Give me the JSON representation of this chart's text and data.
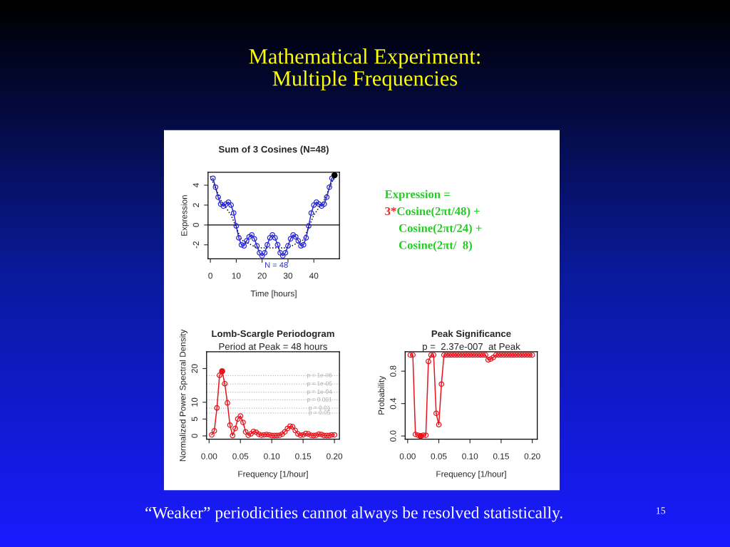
{
  "chart_data": [
    {
      "type": "other",
      "title": "Mathematical Experiment:\nMultiple Frequencies",
      "annotations": [
        "“Weaker” periodicities cannot always be resolved statistically.",
        "15"
      ]
    },
    {
      "type": "line",
      "title": "Sum of 3 Cosines (N=48)",
      "xlabel": "Time [hours]",
      "ylabel": "Expression",
      "xlim": [
        -0.9,
        49.9
      ],
      "ylim": [
        -3.4,
        5.3
      ],
      "xticks": [
        0,
        10,
        20,
        30,
        40
      ],
      "yticks": [
        -2,
        0,
        2,
        4
      ],
      "marker": "circle",
      "ref_lines": [
        {
          "axis": "y",
          "value": 0,
          "color": "#000000"
        }
      ],
      "annotations": [
        "N = 48"
      ],
      "series": [
        {
          "color": "#2b2bd9",
          "x": [
            1,
            2,
            3,
            4,
            5,
            6,
            7,
            8,
            9,
            10,
            11,
            12,
            13,
            14,
            15,
            16,
            17,
            18,
            19,
            20,
            21,
            22,
            23,
            24,
            25,
            26,
            27,
            28,
            29,
            30,
            31,
            32,
            33,
            34,
            35,
            36,
            37,
            38,
            39,
            40,
            41,
            42,
            43,
            44,
            45,
            46,
            47,
            48
          ],
          "values": [
            4.7,
            3.8,
            2.8,
            2.1,
            1.9,
            2.1,
            2.3,
            2.0,
            1.2,
            -0.1,
            -1.3,
            -2.0,
            -2.1,
            -1.6,
            -1.2,
            -1.0,
            -1.4,
            -2.1,
            -2.8,
            -3.1,
            -2.8,
            -2.0,
            -1.3,
            -1.0,
            -1.3,
            -2.0,
            -2.8,
            -3.1,
            -2.8,
            -2.1,
            -1.4,
            -1.0,
            -1.2,
            -1.6,
            -2.1,
            -2.0,
            -1.3,
            -0.1,
            1.2,
            2.0,
            2.3,
            2.1,
            1.9,
            2.1,
            2.8,
            3.8,
            4.7,
            5.0
          ]
        },
        {
          "type": "line",
          "color": "#000000",
          "line_style": "dotted",
          "marker": "none",
          "x": [
            0,
            4,
            8,
            12,
            18,
            24,
            30,
            36,
            40,
            44,
            48
          ],
          "values": [
            4.9,
            2.5,
            1.0,
            -1.5,
            -2.3,
            -2.3,
            -2.3,
            -1.5,
            1.0,
            2.5,
            4.9
          ]
        },
        {
          "type": "scatter",
          "color": "#000000",
          "x": [
            48
          ],
          "values": [
            5.0
          ]
        }
      ]
    },
    {
      "type": "other",
      "annotations": [
        "Expression =",
        "3*",
        "Cosine(2πt/48) +",
        "Cosine(2πt/24) +",
        "Cosine(2πt/  8)"
      ],
      "colors": [
        "#22cc22",
        "#ff2020",
        "#22cc22",
        "#22cc22",
        "#22cc22"
      ]
    },
    {
      "type": "line",
      "title": "Lomb-Scargle Periodogram",
      "subtitle": "Period at Peak = 48 hours",
      "xlabel": "Frequency [1/hour]",
      "ylabel": "Normalized Power Spectral Density",
      "xlim": [
        -0.004,
        0.208
      ],
      "ylim": [
        -1,
        25
      ],
      "xticks": [
        {
          "value": 0,
          "label": "0.00"
        },
        {
          "value": 0.05,
          "label": "0.05"
        },
        {
          "value": 0.1,
          "label": "0.10"
        },
        {
          "value": 0.15,
          "label": "0.15"
        },
        {
          "value": 0.2,
          "label": "0.20"
        }
      ],
      "yticks": [
        0,
        5,
        10,
        20
      ],
      "marker": "circle",
      "ref_lines": [
        {
          "axis": "y",
          "value": 17.9,
          "color": "#bbbbbb",
          "line_style": "dotted"
        },
        {
          "axis": "y",
          "value": 15.4,
          "color": "#bbbbbb",
          "line_style": "dotted"
        },
        {
          "axis": "y",
          "value": 13.0,
          "color": "#bbbbbb",
          "line_style": "dotted"
        },
        {
          "axis": "y",
          "value": 10.7,
          "color": "#bbbbbb",
          "line_style": "dotted"
        },
        {
          "axis": "y",
          "value": 8.2,
          "color": "#bbbbbb",
          "line_style": "dotted"
        },
        {
          "axis": "y",
          "value": 6.8,
          "color": "#bbbbbb",
          "line_style": "dotted"
        }
      ],
      "annotations": [
        {
          "text": "p = 1e-06",
          "y": 17.9
        },
        {
          "text": "p = 1e-05",
          "y": 15.4
        },
        {
          "text": "p = 1e-04",
          "y": 13.0
        },
        {
          "text": "p = 0.001",
          "y": 10.7
        },
        {
          "text": "p = 0.01",
          "y": 8.2
        },
        {
          "text": "p = 0.05",
          "y": 6.8
        }
      ],
      "series": [
        {
          "color": "#e8141e",
          "x": [
            0.0042,
            0.0083,
            0.0125,
            0.0167,
            0.0208,
            0.025,
            0.0292,
            0.0333,
            0.0375,
            0.0417,
            0.0458,
            0.05,
            0.0542,
            0.0583,
            0.0625,
            0.0667,
            0.0708,
            0.075,
            0.0792,
            0.0833,
            0.0875,
            0.0917,
            0.0958,
            0.1,
            0.1042,
            0.1083,
            0.1125,
            0.1167,
            0.1208,
            0.125,
            0.1292,
            0.1333,
            0.1375,
            0.1417,
            0.1458,
            0.15,
            0.1542,
            0.1583,
            0.1625,
            0.1667,
            0.1708,
            0.175,
            0.1792,
            0.1833,
            0.1875,
            0.1917,
            0.1958,
            0.2
          ],
          "values": [
            0.3,
            1.5,
            8.3,
            18.0,
            19.2,
            15.5,
            9.8,
            3.2,
            0.1,
            2.2,
            5.0,
            5.9,
            4.0,
            1.2,
            0.2,
            0.6,
            1.3,
            1.1,
            0.5,
            0.2,
            0.3,
            0.4,
            0.3,
            0.1,
            0.1,
            0.1,
            0.2,
            0.5,
            1.2,
            2.2,
            2.9,
            2.7,
            1.6,
            0.6,
            0.2,
            0.3,
            0.7,
            0.6,
            0.2,
            0.1,
            0.2,
            0.5,
            0.4,
            0.1,
            0.1,
            0.1,
            0.3,
            0.3
          ]
        },
        {
          "type": "scatter",
          "color": "#e8141e",
          "x": [
            0.0208
          ],
          "values": [
            19.2
          ]
        }
      ]
    },
    {
      "type": "line",
      "title": "Peak Significance",
      "subtitle": "p =  2.37e-007  at Peak",
      "xlabel": "Frequency [1/hour]",
      "ylabel": "Probability",
      "xlim": [
        -0.004,
        0.208
      ],
      "ylim": [
        -0.04,
        1.04
      ],
      "xticks": [
        {
          "value": 0,
          "label": "0.00"
        },
        {
          "value": 0.05,
          "label": "0.05"
        },
        {
          "value": 0.1,
          "label": "0.10"
        },
        {
          "value": 0.15,
          "label": "0.15"
        },
        {
          "value": 0.2,
          "label": "0.20"
        }
      ],
      "yticks": [
        {
          "value": 0.0,
          "label": "0.0"
        },
        0.4,
        0.8
      ],
      "marker": "circle",
      "series": [
        {
          "color": "#e8141e",
          "x": [
            0.0042,
            0.0083,
            0.0125,
            0.0167,
            0.0208,
            0.025,
            0.0292,
            0.0333,
            0.0375,
            0.0417,
            0.0458,
            0.05,
            0.0542,
            0.0583,
            0.0625,
            0.0667,
            0.0708,
            0.075,
            0.0792,
            0.0833,
            0.0875,
            0.0917,
            0.0958,
            0.1,
            0.1042,
            0.1083,
            0.1125,
            0.1167,
            0.1208,
            0.125,
            0.1292,
            0.1333,
            0.1375,
            0.1417,
            0.1458,
            0.15,
            0.1542,
            0.1583,
            0.1625,
            0.1667,
            0.1708,
            0.175,
            0.1792,
            0.1833,
            0.1875,
            0.1917,
            0.1958,
            0.2
          ],
          "values": [
            1.0,
            1.0,
            0.02,
            0.01,
            0.0,
            0.01,
            0.01,
            0.92,
            1.0,
            1.0,
            0.28,
            0.14,
            0.64,
            1.0,
            1.0,
            1.0,
            1.0,
            1.0,
            1.0,
            1.0,
            1.0,
            1.0,
            1.0,
            1.0,
            1.0,
            1.0,
            1.0,
            1.0,
            1.0,
            1.0,
            0.94,
            0.95,
            0.97,
            1.0,
            1.0,
            1.0,
            1.0,
            1.0,
            1.0,
            1.0,
            1.0,
            1.0,
            1.0,
            1.0,
            1.0,
            1.0,
            1.0,
            1.0
          ]
        },
        {
          "type": "scatter",
          "color": "#e8141e",
          "x": [
            0.0208
          ],
          "values": [
            0.0
          ]
        }
      ]
    }
  ]
}
